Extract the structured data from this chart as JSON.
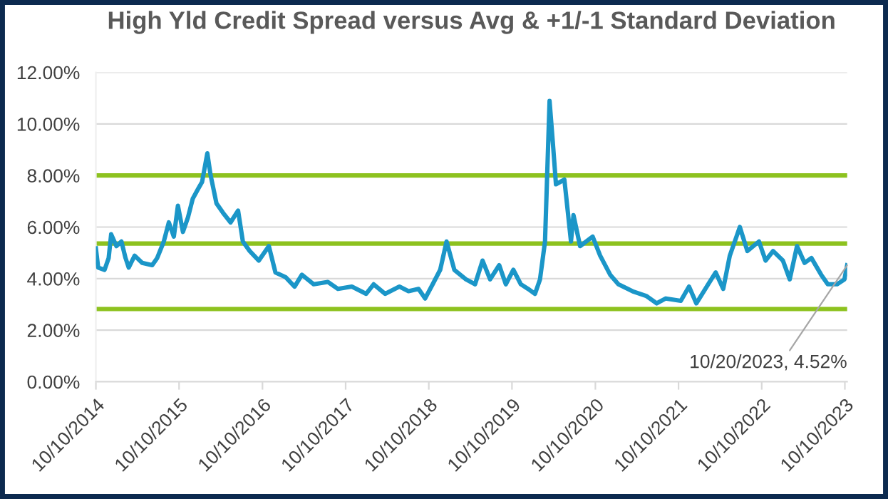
{
  "chart_data": {
    "type": "line",
    "title": "High Yld Credit Spread versus Avg & +1/-1 Standard Deviation",
    "x": [
      "2014-10-10",
      "2014-10-20",
      "2014-11-17",
      "2014-12-05",
      "2014-12-16",
      "2015-01-08",
      "2015-01-30",
      "2015-02-17",
      "2015-03-03",
      "2015-03-29",
      "2015-05-01",
      "2015-06-14",
      "2015-07-06",
      "2015-08-04",
      "2015-08-26",
      "2015-09-17",
      "2015-10-05",
      "2015-10-27",
      "2015-11-18",
      "2015-12-09",
      "2016-01-01",
      "2016-01-19",
      "2016-02-11",
      "2016-02-25",
      "2016-03-22",
      "2016-04-20",
      "2016-05-23",
      "2016-06-25",
      "2016-07-16",
      "2016-08-15",
      "2016-09-24",
      "2016-11-07",
      "2016-12-06",
      "2017-01-19",
      "2017-02-28",
      "2017-04-01",
      "2017-05-23",
      "2017-07-24",
      "2017-09-06",
      "2017-11-06",
      "2018-01-08",
      "2018-02-10",
      "2018-04-01",
      "2018-06-03",
      "2018-07-13",
      "2018-08-26",
      "2018-09-24",
      "2018-10-27",
      "2018-11-29",
      "2018-12-27",
      "2019-01-30",
      "2019-03-22",
      "2019-05-01",
      "2019-06-03",
      "2019-07-06",
      "2019-08-15",
      "2019-09-13",
      "2019-10-16",
      "2019-11-18",
      "2019-12-20",
      "2020-01-19",
      "2020-02-10",
      "2020-03-03",
      "2020-03-23",
      "2020-04-06",
      "2020-04-20",
      "2020-05-27",
      "2020-06-25",
      "2020-07-06",
      "2020-08-04",
      "2020-09-28",
      "2020-10-31",
      "2020-12-14",
      "2021-01-19",
      "2021-03-22",
      "2021-05-23",
      "2021-07-06",
      "2021-08-15",
      "2021-10-20",
      "2021-11-25",
      "2021-12-27",
      "2022-02-17",
      "2022-03-22",
      "2022-04-24",
      "2022-05-23",
      "2022-07-06",
      "2022-08-08",
      "2022-09-28",
      "2022-10-27",
      "2022-11-29",
      "2023-01-11",
      "2023-02-10",
      "2023-03-14",
      "2023-04-16",
      "2023-05-16",
      "2023-06-28",
      "2023-07-27",
      "2023-09-06",
      "2023-10-08",
      "2023-10-20"
    ],
    "series": [
      {
        "color": "#1b96c8",
        "values": [
          5.17,
          4.43,
          4.34,
          4.8,
          5.72,
          5.26,
          5.44,
          4.8,
          4.43,
          4.89,
          4.61,
          4.52,
          4.8,
          5.44,
          6.18,
          5.63,
          6.83,
          5.81,
          6.37,
          7.1,
          7.47,
          7.75,
          8.86,
          8.03,
          6.92,
          6.55,
          6.18,
          6.64,
          5.44,
          5.07,
          4.7,
          5.26,
          4.24,
          4.06,
          3.69,
          4.15,
          3.78,
          3.87,
          3.6,
          3.69,
          3.41,
          3.78,
          3.41,
          3.69,
          3.51,
          3.6,
          3.23,
          3.78,
          4.34,
          5.44,
          4.34,
          3.97,
          3.78,
          4.7,
          3.97,
          4.52,
          3.78,
          4.34,
          3.78,
          3.6,
          3.41,
          3.97,
          5.44,
          10.89,
          9.32,
          7.66,
          7.84,
          5.44,
          6.46,
          5.26,
          5.63,
          4.89,
          4.15,
          3.78,
          3.51,
          3.32,
          3.04,
          3.23,
          3.14,
          3.69,
          3.04,
          3.78,
          4.24,
          3.6,
          4.89,
          6.0,
          5.07,
          5.44,
          4.7,
          5.07,
          4.7,
          3.97,
          5.26,
          4.61,
          4.8,
          4.15,
          3.78,
          3.78,
          3.97,
          4.52
        ]
      }
    ],
    "xlim": [
      "2014-10-10",
      "2023-10-20"
    ],
    "xticks": [
      {
        "value": "2014-10-10",
        "label": "10/10/2014"
      },
      {
        "value": "2015-10-10",
        "label": "10/10/2015"
      },
      {
        "value": "2016-10-10",
        "label": "10/10/2016"
      },
      {
        "value": "2017-10-10",
        "label": "10/10/2017"
      },
      {
        "value": "2018-10-10",
        "label": "10/10/2018"
      },
      {
        "value": "2019-10-10",
        "label": "10/10/2019"
      },
      {
        "value": "2020-10-10",
        "label": "10/10/2020"
      },
      {
        "value": "2021-10-10",
        "label": "10/10/2021"
      },
      {
        "value": "2022-10-10",
        "label": "10/10/2022"
      },
      {
        "value": "2023-10-10",
        "label": "10/10/2023"
      }
    ],
    "ylim": [
      0,
      12
    ],
    "yticks": [
      {
        "value": 0,
        "label": "0.00%"
      },
      {
        "value": 2,
        "label": "2.00%"
      },
      {
        "value": 4,
        "label": "4.00%"
      },
      {
        "value": 6,
        "label": "6.00%"
      },
      {
        "value": 8,
        "label": "8.00%"
      },
      {
        "value": 10,
        "label": "10.00%"
      },
      {
        "value": 12,
        "label": "12.00%"
      }
    ],
    "ref_lines": [
      {
        "axis": "y",
        "value": 8.0,
        "color": "#8dc21f"
      },
      {
        "axis": "y",
        "value": 5.36,
        "color": "#8dc21f"
      },
      {
        "axis": "y",
        "value": 2.82,
        "color": "#8dc21f"
      }
    ],
    "annotations": [
      {
        "text": "10/20/2023, 4.52%",
        "x": "2023-10-20",
        "y": 4.52
      }
    ],
    "grid": "y",
    "legend": false,
    "marker": "none",
    "line_style": "solid"
  }
}
